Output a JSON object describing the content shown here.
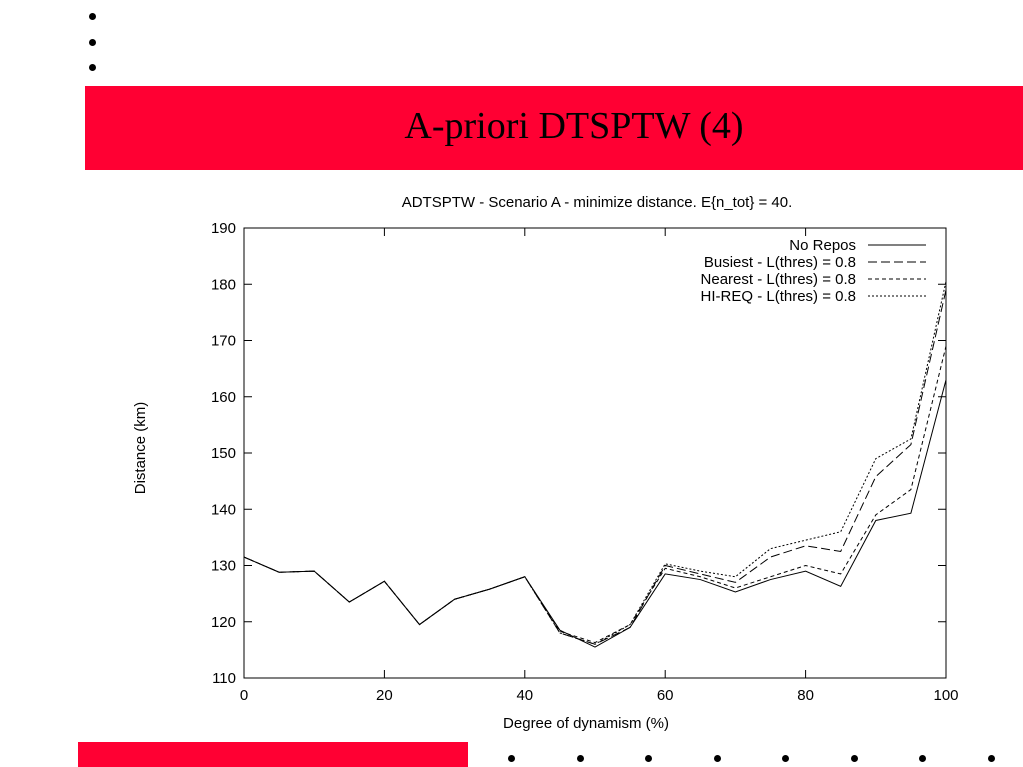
{
  "slide": {
    "title": "A-priori DTSPTW (4)"
  },
  "colors": {
    "banner": "#ff0033"
  },
  "chart_data": {
    "type": "line",
    "title": "ADTSPTW - Scenario A - minimize distance. E{n_tot} = 40.",
    "xlabel": "Degree of dynamism (%)",
    "ylabel": "Distance (km)",
    "xlim": [
      0,
      100
    ],
    "ylim": [
      110,
      190
    ],
    "xticks": [
      0,
      20,
      40,
      60,
      80,
      100
    ],
    "yticks": [
      110,
      120,
      130,
      140,
      150,
      160,
      170,
      180,
      190
    ],
    "legend_position": "top-right",
    "x": [
      0,
      5,
      10,
      15,
      20,
      25,
      30,
      35,
      40,
      45,
      50,
      55,
      60,
      65,
      70,
      75,
      80,
      85,
      90,
      95,
      100
    ],
    "series": [
      {
        "name": "No Repos",
        "dash": "",
        "values": [
          131.5,
          128.8,
          129.0,
          123.5,
          127.2,
          119.5,
          124.0,
          125.8,
          128.0,
          118.5,
          115.5,
          119.0,
          128.5,
          127.5,
          125.3,
          127.5,
          129.0,
          126.3,
          138.0,
          139.3,
          163.0
        ]
      },
      {
        "name": "Busiest - L(thres) = 0.8",
        "dash": "9,4",
        "values": [
          131.5,
          128.8,
          129.0,
          123.5,
          127.2,
          119.5,
          124.0,
          125.8,
          128.0,
          118.0,
          116.0,
          119.0,
          130.0,
          128.5,
          127.0,
          131.5,
          133.5,
          132.5,
          145.8,
          151.5,
          179.0
        ]
      },
      {
        "name": "Nearest - L(thres) = 0.8",
        "dash": "4,3",
        "values": [
          131.5,
          128.8,
          129.0,
          123.5,
          127.2,
          119.5,
          124.0,
          125.8,
          128.0,
          118.3,
          116.3,
          119.5,
          129.5,
          128.0,
          126.0,
          128.0,
          130.0,
          128.5,
          139.0,
          143.5,
          169.0
        ]
      },
      {
        "name": "HI-REQ - L(thres) = 0.8",
        "dash": "2,2",
        "values": [
          131.5,
          128.8,
          129.0,
          123.5,
          127.2,
          119.5,
          124.0,
          125.8,
          128.0,
          118.0,
          116.0,
          119.5,
          130.3,
          129.0,
          128.0,
          133.0,
          134.5,
          136.0,
          149.0,
          152.5,
          180.5
        ]
      }
    ]
  }
}
